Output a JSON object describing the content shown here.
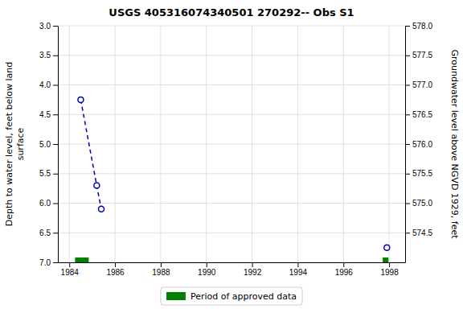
{
  "chart_data": {
    "type": "line",
    "title": "USGS 405316074340501 270292-- Obs S1",
    "y_label": "Depth to water level, feet below land\nsurface",
    "y2_label": "Groundwater level above NGVD 1929, feet",
    "xlim": [
      1983.5,
      1998.7
    ],
    "xticks": [
      1984,
      1986,
      1988,
      1990,
      1992,
      1994,
      1996,
      1998
    ],
    "ylim": [
      7.0,
      3.0
    ],
    "yticks": [
      {
        "value": 3.0,
        "label": "3.0"
      },
      3.5,
      {
        "value": 4.0,
        "label": "4.0"
      },
      4.5,
      {
        "value": 5.0,
        "label": "5.0"
      },
      5.5,
      {
        "value": 6.0,
        "label": "6.0"
      },
      6.5,
      {
        "value": 7.0,
        "label": "7.0"
      }
    ],
    "y2lim": [
      574.0,
      578.0
    ],
    "y2ticks": [
      {
        "value": 578.0,
        "label": "578.0"
      },
      577.5,
      {
        "value": 577.0,
        "label": "577.0"
      },
      576.5,
      {
        "value": 576.0,
        "label": "576.0"
      },
      575.5,
      {
        "value": 575.0,
        "label": "575.0"
      },
      574.5
    ],
    "grid": true,
    "legend": "bottom",
    "series": [
      {
        "type": "line",
        "x": [
          1984.5,
          1985.2,
          1985.4
        ],
        "values": [
          4.25,
          5.7,
          6.1
        ],
        "color": "#0000bb",
        "line_style": "dashed",
        "marker": "circle"
      },
      {
        "type": "scatter",
        "x": [
          1997.9
        ],
        "values": [
          6.75
        ],
        "color": "#0000bb",
        "marker": "circle"
      },
      {
        "name": "Period of approved data",
        "type": "span",
        "color": "#008000",
        "x": [
          [
            1984.25,
            1984.85
          ],
          [
            1997.72,
            1997.97
          ]
        ]
      }
    ]
  }
}
